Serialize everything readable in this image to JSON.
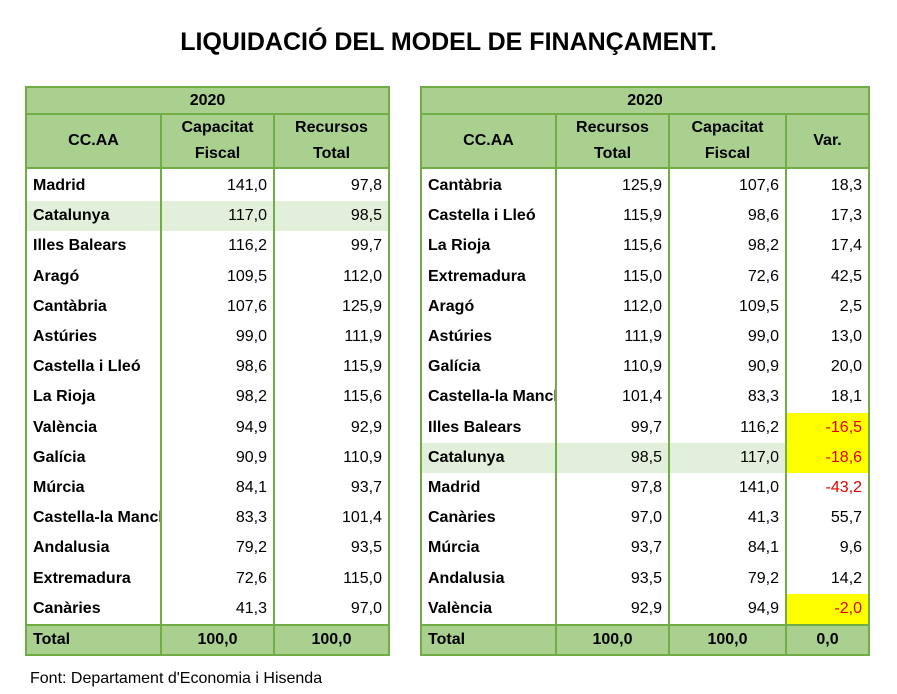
{
  "title": "LIQUIDACIÓ DEL MODEL DE FINANÇAMENT.",
  "left_table": {
    "year": "2020",
    "headers": [
      "CC.AA",
      "Capacitat Fiscal",
      "Recursos Total"
    ],
    "rows": [
      [
        "Madrid",
        "141,0",
        "97,8"
      ],
      [
        "Catalunya",
        "117,0",
        "98,5"
      ],
      [
        "Illes Balears",
        "116,2",
        "99,7"
      ],
      [
        "Aragó",
        "109,5",
        "112,0"
      ],
      [
        "Cantàbria",
        "107,6",
        "125,9"
      ],
      [
        "Astúries",
        "99,0",
        "111,9"
      ],
      [
        "Castella i Lleó",
        "98,6",
        "115,9"
      ],
      [
        "La Rioja",
        "98,2",
        "115,6"
      ],
      [
        "València",
        "94,9",
        "92,9"
      ],
      [
        "Galícia",
        "90,9",
        "110,9"
      ],
      [
        "Múrcia",
        "84,1",
        "93,7"
      ],
      [
        "Castella-la Mancha",
        "83,3",
        "101,4"
      ],
      [
        "Andalusia",
        "79,2",
        "93,5"
      ],
      [
        "Extremadura",
        "72,6",
        "115,0"
      ],
      [
        "Canàries",
        "41,3",
        "97,0"
      ]
    ],
    "total": [
      "Total",
      "100,0",
      "100,0"
    ]
  },
  "right_table": {
    "year": "2020",
    "headers": [
      "CC.AA",
      "Recursos Total",
      "Capacitat Fiscal",
      "Var."
    ],
    "rows": [
      [
        "Cantàbria",
        "125,9",
        "107,6",
        "18,3"
      ],
      [
        "Castella i Lleó",
        "115,9",
        "98,6",
        "17,3"
      ],
      [
        "La Rioja",
        "115,6",
        "98,2",
        "17,4"
      ],
      [
        "Extremadura",
        "115,0",
        "72,6",
        "42,5"
      ],
      [
        "Aragó",
        "112,0",
        "109,5",
        "2,5"
      ],
      [
        "Astúries",
        "111,9",
        "99,0",
        "13,0"
      ],
      [
        "Galícia",
        "110,9",
        "90,9",
        "20,0"
      ],
      [
        "Castella-la Mancha",
        "101,4",
        "83,3",
        "18,1"
      ],
      [
        "Illes Balears",
        "99,7",
        "116,2",
        "-16,5"
      ],
      [
        "Catalunya",
        "98,5",
        "117,0",
        "-18,6"
      ],
      [
        "Madrid",
        "97,8",
        "141,0",
        "-43,2"
      ],
      [
        "Canàries",
        "97,0",
        "41,3",
        "55,7"
      ],
      [
        "Múrcia",
        "93,7",
        "84,1",
        "9,6"
      ],
      [
        "Andalusia",
        "93,5",
        "79,2",
        "14,2"
      ],
      [
        "València",
        "92,9",
        "94,9",
        "-2,0"
      ]
    ],
    "total": [
      "Total",
      "100,0",
      "100,0",
      "0,0"
    ]
  },
  "source": "Font: Departament d'Economia i Hisenda"
}
